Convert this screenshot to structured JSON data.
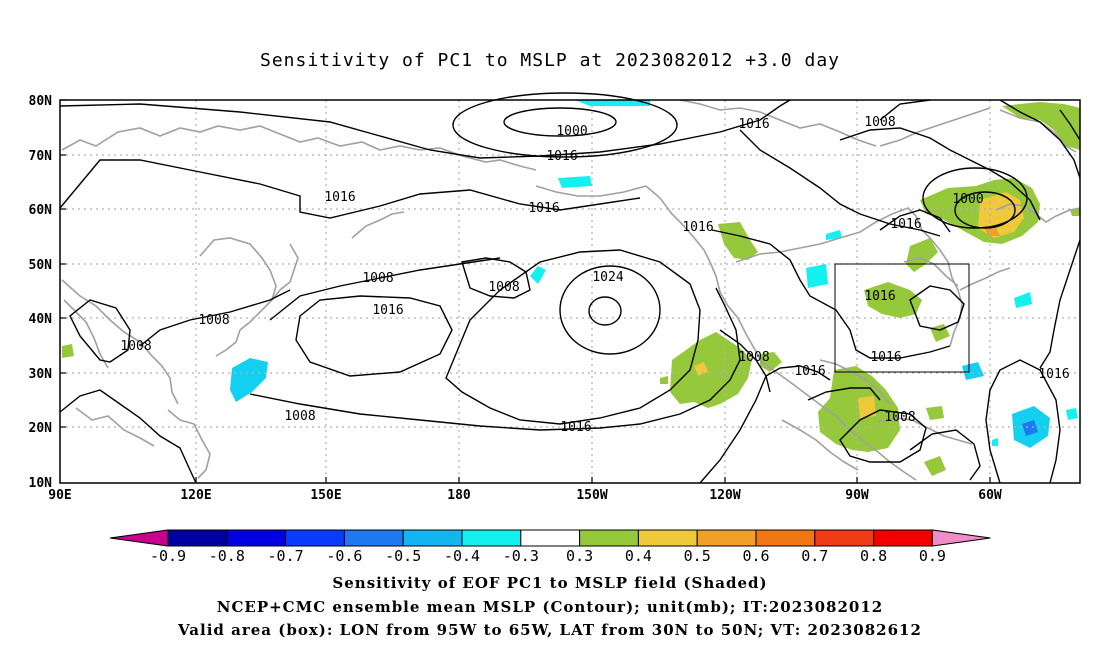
{
  "title": "Sensitivity of PC1 to MSLP at 2023082012 +3.0 day",
  "map": {
    "lat_labels": [
      "80N",
      "70N",
      "60N",
      "50N",
      "40N",
      "30N",
      "20N",
      "10N"
    ],
    "lon_labels": [
      "90E",
      "120E",
      "150E",
      "180",
      "150W",
      "120W",
      "90W",
      "60W"
    ],
    "valid_box": {
      "lon": [
        "95W",
        "65W"
      ],
      "lat": [
        "30N",
        "50N"
      ]
    }
  },
  "contours": {
    "unit": "mb",
    "labels": [
      "1000",
      "1016",
      "1016",
      "1016",
      "1016",
      "1008",
      "1008",
      "1024",
      "1016",
      "1008",
      "1008",
      "1016",
      "1008",
      "1016",
      "1016",
      "1016",
      "1008",
      "1000",
      "1016",
      "1016",
      "1008",
      "1016",
      "1008"
    ]
  },
  "colorbar": {
    "labels": [
      "-0.9",
      "-0.8",
      "-0.7",
      "-0.6",
      "-0.5",
      "-0.4",
      "-0.3",
      "0.3",
      "0.4",
      "0.5",
      "0.6",
      "0.7",
      "0.8",
      "0.9"
    ],
    "colors": {
      "below": "#c8008c",
      "bins": [
        "#0000a0",
        "#0000e0",
        "#0a3cff",
        "#1e78f0",
        "#14b4f0",
        "#14f0f0",
        "#ffffff",
        "#96c83c",
        "#f0c83c",
        "#f0a028",
        "#f07814",
        "#f03c14",
        "#f00000"
      ],
      "above": "#f08cc8"
    }
  },
  "captions": {
    "line1": "Sensitivity of EOF PC1 to MSLP field (Shaded)",
    "line2": "NCEP+CMC ensemble mean MSLP (Contour); unit(mb); IT:2023082012",
    "line3": "Valid area (box): LON from 95W to 65W, LAT from 30N to 50N; VT: 2023082612"
  }
}
